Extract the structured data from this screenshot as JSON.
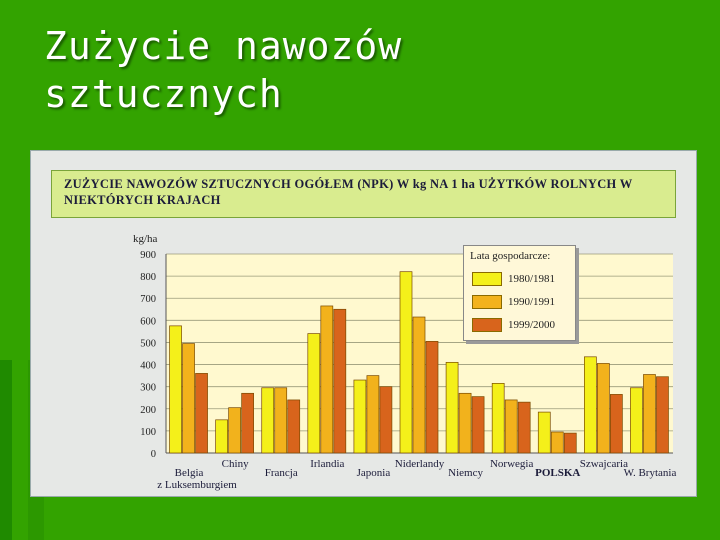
{
  "slide": {
    "title": "Zużycie nawozów\nsztucznych"
  },
  "chart_data": {
    "type": "bar",
    "title": "ZUŻYCIE NAWOZÓW SZTUCZNYCH OGÓŁEM (NPK) W kg NA 1 ha UŻYTKÓW ROLNYCH W NIEKTÓRYCH KRAJACH",
    "ylabel": "kg/ha",
    "ylim": [
      0,
      900
    ],
    "yticks": [
      0,
      100,
      200,
      300,
      400,
      500,
      600,
      700,
      800,
      900
    ],
    "grid": true,
    "legend_title": "Lata gospodarcze:",
    "legend_position": "top-right",
    "categories": [
      "Belgia z Luksemburgiem",
      "Chiny",
      "Francja",
      "Irlandia",
      "Japonia",
      "Niderlandy",
      "Niemcy",
      "Norwegia",
      "POLSKA",
      "Szwajcaria",
      "W. Brytania"
    ],
    "category_lines": [
      [
        "Belgia",
        "z Luksemburgiem"
      ],
      [
        "Chiny"
      ],
      [
        "Francja"
      ],
      [
        "Irlandia"
      ],
      [
        "Japonia"
      ],
      [
        "Niderlandy"
      ],
      [
        "Niemcy"
      ],
      [
        "Norwegia"
      ],
      [
        "POLSKA"
      ],
      [
        "Szwajcaria"
      ],
      [
        "W. Brytania"
      ]
    ],
    "series": [
      {
        "name": "1980/1981",
        "color": "#f4f01a",
        "values": [
          575,
          150,
          295,
          540,
          330,
          820,
          410,
          315,
          185,
          435,
          295
        ]
      },
      {
        "name": "1990/1991",
        "color": "#f2b21c",
        "values": [
          495,
          205,
          295,
          665,
          350,
          615,
          270,
          240,
          95,
          405,
          355
        ]
      },
      {
        "name": "1999/2000",
        "color": "#d8641c",
        "values": [
          360,
          270,
          240,
          650,
          300,
          505,
          255,
          230,
          90,
          265,
          345
        ]
      }
    ]
  }
}
